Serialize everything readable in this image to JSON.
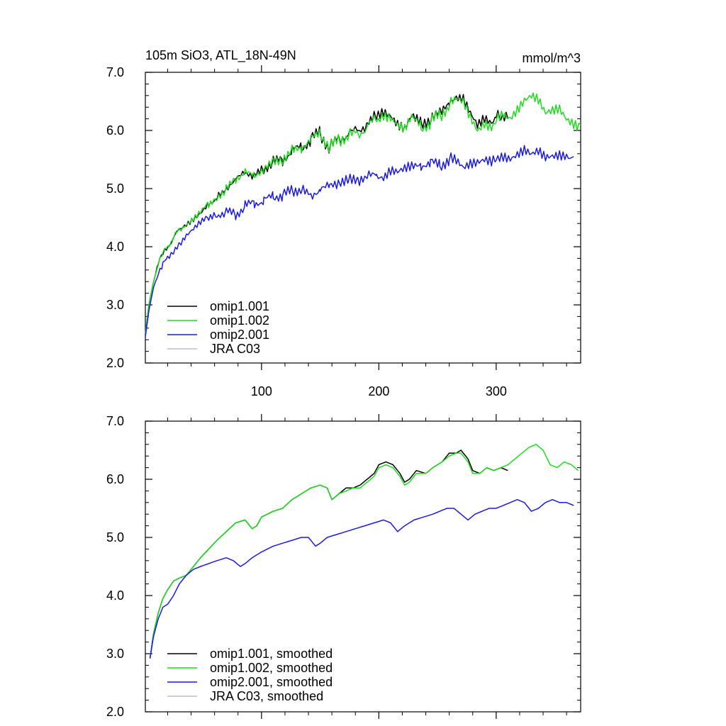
{
  "chart_data": [
    {
      "type": "line",
      "title": "105m SiO3, ATL_18N-49N",
      "units": "mmol/m^3",
      "xlim": [
        1,
        372
      ],
      "ylim": [
        2.0,
        7.0
      ],
      "x_ticks": [
        100,
        200,
        300
      ],
      "x_tick_labels": [
        "100",
        "200",
        "300"
      ],
      "y_ticks": [
        2.0,
        3.0,
        4.0,
        5.0,
        6.0,
        7.0
      ],
      "y_tick_labels": [
        "2.0",
        "3.0",
        "4.0",
        "5.0",
        "6.0",
        "7.0"
      ],
      "legend": {
        "placement": "bottom-left",
        "entries": [
          "omip1.001",
          "omip1.002",
          "omip2.001",
          "JRA C03"
        ]
      },
      "series": [
        {
          "name": "omip1.001",
          "color": "#000000",
          "x": [
            1,
            4,
            8,
            12,
            16,
            20,
            25,
            30,
            36,
            42,
            48,
            55,
            62,
            70,
            78,
            86,
            94,
            102,
            110,
            118,
            126,
            134,
            142,
            150,
            158,
            166,
            174,
            182,
            190,
            198,
            204,
            210,
            216,
            222,
            228,
            236,
            244,
            252,
            260,
            266,
            272,
            278,
            284,
            290,
            296,
            300,
            304,
            310
          ],
          "values": [
            2.5,
            3.0,
            3.4,
            3.7,
            3.9,
            4.0,
            4.15,
            4.3,
            4.4,
            4.5,
            4.6,
            4.75,
            4.85,
            5.0,
            5.15,
            5.3,
            5.2,
            5.35,
            5.45,
            5.5,
            5.65,
            5.7,
            5.85,
            5.95,
            5.7,
            5.85,
            5.95,
            6.0,
            6.1,
            6.25,
            6.35,
            6.3,
            6.15,
            6.05,
            6.25,
            6.1,
            6.2,
            6.3,
            6.5,
            6.55,
            6.5,
            6.25,
            6.05,
            6.2,
            6.15,
            6.25,
            6.2,
            6.2
          ]
        },
        {
          "name": "omip1.002",
          "color": "#1ddc1d",
          "x": [
            1,
            4,
            8,
            12,
            16,
            20,
            25,
            30,
            36,
            42,
            48,
            55,
            62,
            70,
            78,
            86,
            94,
            102,
            110,
            118,
            126,
            134,
            142,
            150,
            158,
            166,
            174,
            182,
            190,
            198,
            204,
            210,
            216,
            222,
            228,
            236,
            244,
            252,
            260,
            266,
            272,
            278,
            284,
            290,
            296,
            300,
            306,
            312,
            318,
            324,
            330,
            336,
            342,
            348,
            354,
            360,
            366,
            372
          ],
          "values": [
            2.5,
            3.0,
            3.4,
            3.7,
            3.9,
            4.0,
            4.15,
            4.3,
            4.4,
            4.5,
            4.6,
            4.75,
            4.85,
            5.0,
            5.15,
            5.3,
            5.2,
            5.35,
            5.45,
            5.5,
            5.65,
            5.7,
            5.85,
            5.95,
            5.7,
            5.85,
            5.9,
            5.95,
            6.05,
            6.2,
            6.3,
            6.25,
            6.1,
            6.0,
            6.2,
            6.05,
            6.15,
            6.25,
            6.45,
            6.5,
            6.45,
            6.2,
            6.0,
            6.15,
            6.1,
            6.2,
            6.3,
            6.25,
            6.4,
            6.55,
            6.6,
            6.5,
            6.25,
            6.3,
            6.35,
            6.2,
            6.15,
            6.1
          ]
        },
        {
          "name": "omip2.001",
          "color": "#1a1ae6",
          "x": [
            1,
            4,
            8,
            12,
            16,
            20,
            25,
            30,
            36,
            42,
            48,
            55,
            62,
            70,
            78,
            86,
            94,
            102,
            110,
            118,
            126,
            134,
            142,
            150,
            158,
            166,
            174,
            182,
            190,
            198,
            204,
            210,
            216,
            222,
            228,
            236,
            244,
            252,
            260,
            266,
            272,
            278,
            284,
            290,
            296,
            300,
            306,
            312,
            318,
            324,
            330,
            336,
            342,
            348,
            354,
            360,
            366
          ],
          "values": [
            2.45,
            2.9,
            3.3,
            3.55,
            3.7,
            3.8,
            3.9,
            4.05,
            4.2,
            4.3,
            4.4,
            4.5,
            4.55,
            4.6,
            4.55,
            4.7,
            4.75,
            4.8,
            4.85,
            4.9,
            4.95,
            5.0,
            4.85,
            5.0,
            5.05,
            5.1,
            5.15,
            5.15,
            5.2,
            5.25,
            5.2,
            5.3,
            5.25,
            5.3,
            5.35,
            5.4,
            5.45,
            5.4,
            5.5,
            5.45,
            5.35,
            5.45,
            5.5,
            5.55,
            5.5,
            5.55,
            5.6,
            5.55,
            5.6,
            5.65,
            5.55,
            5.6,
            5.5,
            5.55,
            5.6,
            5.6,
            5.55
          ]
        },
        {
          "name": "JRA C03",
          "color": "#bdbdbd",
          "x": [],
          "values": []
        }
      ]
    },
    {
      "type": "line",
      "title": "",
      "xlim": [
        1,
        372
      ],
      "ylim": [
        2.0,
        7.0
      ],
      "x_ticks": [
        100,
        200,
        300
      ],
      "x_tick_labels": [
        "",
        "",
        ""
      ],
      "y_ticks": [
        2.0,
        3.0,
        4.0,
        5.0,
        6.0,
        7.0
      ],
      "y_tick_labels": [
        "2.0",
        "3.0",
        "4.0",
        "5.0",
        "6.0",
        "7.0"
      ],
      "legend": {
        "placement": "bottom-left",
        "entries": [
          "omip1.001, smoothed",
          "omip1.002, smoothed",
          "omip2.001, smoothed",
          "JRA C03, smoothed"
        ]
      },
      "series": [
        {
          "name": "omip1.001, smoothed",
          "color": "#000000",
          "x": [
            5,
            8,
            12,
            16,
            20,
            25,
            30,
            36,
            42,
            48,
            55,
            62,
            70,
            78,
            86,
            92,
            96,
            100,
            110,
            118,
            126,
            134,
            142,
            150,
            156,
            160,
            166,
            172,
            178,
            184,
            190,
            196,
            200,
            206,
            212,
            218,
            222,
            226,
            232,
            240,
            246,
            254,
            260,
            266,
            270,
            276,
            280,
            286,
            292,
            298,
            304,
            310
          ],
          "values": [
            2.92,
            3.35,
            3.7,
            3.95,
            4.1,
            4.25,
            4.3,
            4.35,
            4.5,
            4.65,
            4.8,
            4.95,
            5.1,
            5.25,
            5.3,
            5.15,
            5.2,
            5.35,
            5.45,
            5.5,
            5.65,
            5.75,
            5.85,
            5.9,
            5.85,
            5.65,
            5.75,
            5.85,
            5.85,
            5.9,
            6.0,
            6.1,
            6.25,
            6.3,
            6.25,
            6.1,
            5.95,
            6.0,
            6.15,
            6.1,
            6.2,
            6.3,
            6.45,
            6.45,
            6.5,
            6.35,
            6.15,
            6.1,
            6.2,
            6.15,
            6.2,
            6.15
          ]
        },
        {
          "name": "omip1.002, smoothed",
          "color": "#1ddc1d",
          "x": [
            5,
            8,
            12,
            16,
            20,
            25,
            30,
            36,
            42,
            48,
            55,
            62,
            70,
            78,
            86,
            92,
            96,
            100,
            110,
            118,
            126,
            134,
            142,
            150,
            156,
            160,
            166,
            172,
            178,
            184,
            190,
            196,
            200,
            206,
            212,
            218,
            222,
            226,
            232,
            240,
            246,
            254,
            260,
            266,
            270,
            276,
            280,
            286,
            292,
            298,
            304,
            310,
            316,
            322,
            328,
            334,
            340,
            346,
            352,
            358,
            364,
            370
          ],
          "values": [
            2.92,
            3.35,
            3.7,
            3.95,
            4.1,
            4.25,
            4.3,
            4.35,
            4.5,
            4.65,
            4.8,
            4.95,
            5.1,
            5.25,
            5.3,
            5.15,
            5.2,
            5.35,
            5.45,
            5.5,
            5.65,
            5.75,
            5.85,
            5.9,
            5.85,
            5.65,
            5.75,
            5.8,
            5.85,
            5.85,
            5.95,
            6.05,
            6.2,
            6.25,
            6.2,
            6.05,
            5.9,
            5.95,
            6.1,
            6.1,
            6.2,
            6.3,
            6.4,
            6.45,
            6.45,
            6.3,
            6.1,
            6.1,
            6.2,
            6.15,
            6.2,
            6.25,
            6.35,
            6.45,
            6.55,
            6.6,
            6.5,
            6.25,
            6.2,
            6.3,
            6.25,
            6.15
          ]
        },
        {
          "name": "omip2.001, smoothed",
          "color": "#1a1ae6",
          "x": [
            5,
            8,
            12,
            16,
            20,
            25,
            30,
            36,
            42,
            48,
            55,
            62,
            70,
            76,
            82,
            86,
            92,
            100,
            110,
            118,
            126,
            134,
            140,
            146,
            150,
            156,
            164,
            172,
            180,
            188,
            196,
            204,
            210,
            216,
            222,
            230,
            238,
            246,
            252,
            258,
            264,
            270,
            276,
            282,
            288,
            294,
            300,
            306,
            312,
            318,
            324,
            330,
            336,
            342,
            348,
            354,
            360,
            366
          ],
          "values": [
            2.92,
            3.3,
            3.6,
            3.8,
            3.85,
            4.0,
            4.2,
            4.35,
            4.45,
            4.5,
            4.55,
            4.6,
            4.65,
            4.6,
            4.5,
            4.55,
            4.65,
            4.75,
            4.85,
            4.9,
            4.95,
            5.0,
            5.0,
            4.85,
            4.9,
            5.0,
            5.05,
            5.1,
            5.15,
            5.2,
            5.25,
            5.3,
            5.25,
            5.1,
            5.2,
            5.3,
            5.35,
            5.4,
            5.45,
            5.5,
            5.5,
            5.4,
            5.3,
            5.4,
            5.45,
            5.5,
            5.5,
            5.55,
            5.6,
            5.65,
            5.6,
            5.45,
            5.5,
            5.6,
            5.65,
            5.6,
            5.6,
            5.55
          ]
        },
        {
          "name": "JRA C03, smoothed",
          "color": "#bdbdbd",
          "x": [],
          "values": []
        }
      ]
    }
  ]
}
